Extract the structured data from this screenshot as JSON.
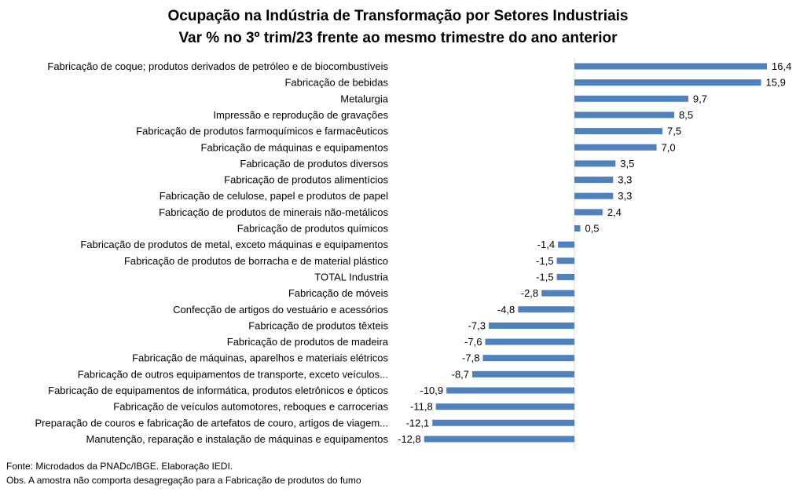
{
  "chart_data": {
    "type": "bar",
    "orientation": "horizontal",
    "title": "Ocupação na Indústria de Transformação por Setores Industriais",
    "subtitle": "Var % no 3º trim/23 frente ao mesmo trimestre do ano anterior",
    "bar_color": "#4f81bd",
    "grid": false,
    "categories": [
      "Fabricação de coque; produtos derivados de petróleo e de biocombustíveis",
      "Fabricação de bebidas",
      "Metalurgia",
      "Impressão e reprodução de gravações",
      "Fabricação de produtos farmoquímicos e farmacêuticos",
      "Fabricação de máquinas e equipamentos",
      "Fabricação de produtos diversos",
      "Fabricação de produtos alimentícios",
      "Fabricação de celulose, papel e produtos de papel",
      "Fabricação de produtos de minerais não-metálicos",
      "Fabricação de produtos químicos",
      "Fabricação de produtos de metal, exceto máquinas e equipamentos",
      "Fabricação de produtos de borracha e de material plástico",
      "TOTAL Industria",
      "Fabricação de móveis",
      "Confecção de artigos do vestuário e acessórios",
      "Fabricação de produtos têxteis",
      "Fabricação de produtos de madeira",
      "Fabricação de máquinas, aparelhos e materiais elétricos",
      "Fabricação de outros equipamentos de transporte, exceto veículos...",
      "Fabricação de equipamentos de informática, produtos eletrônicos e ópticos",
      "Fabricação de veículos automotores, reboques e carrocerias",
      "Preparação de couros e fabricação de artefatos de couro, artigos de viagem...",
      "Manutenção, reparação e instalação de máquinas e equipamentos"
    ],
    "values": [
      16.4,
      15.9,
      9.7,
      8.5,
      7.5,
      7.0,
      3.5,
      3.3,
      3.3,
      2.4,
      0.5,
      -1.4,
      -1.5,
      -1.5,
      -2.8,
      -4.8,
      -7.3,
      -7.6,
      -7.8,
      -8.7,
      -10.9,
      -11.8,
      -12.1,
      -12.8
    ],
    "data_labels": [
      "16,4",
      "15,9",
      "9,7",
      "8,5",
      "7,5",
      "7,0",
      "3,5",
      "3,3",
      "3,3",
      "2,4",
      "0,5",
      "-1,4",
      "-1,5",
      "-1,5",
      "-2,8",
      "-4,8",
      "-7,3",
      "-7,6",
      "-7,8",
      "-8,7",
      "-10,9",
      "-11,8",
      "-12,1",
      "-12,8"
    ]
  },
  "footer": {
    "source": "Fonte: Microdados da PNADc/IBGE. Elaboração IEDI.",
    "note": "Obs. A amostra não comporta desagregação para a Fabricação de produtos do fumo"
  }
}
